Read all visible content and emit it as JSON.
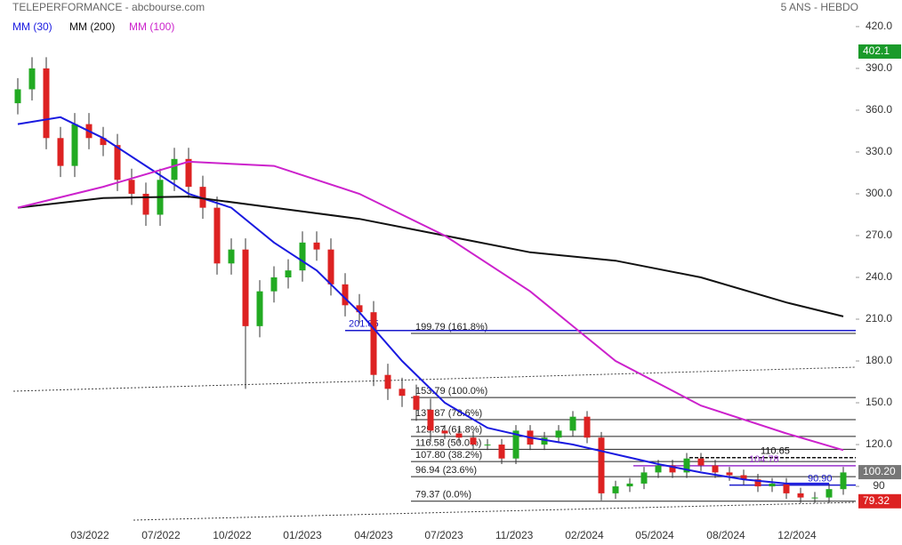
{
  "chart_data": {
    "type": "candlestick",
    "title": "TELEPERFORMANCE - abcbourse.com",
    "subtitle": "5 ANS - HEBDO",
    "x": [
      0,
      1,
      2,
      3,
      4,
      5,
      6,
      7,
      8,
      9,
      10,
      11,
      12,
      13,
      14,
      15,
      16,
      17,
      18,
      19,
      20,
      21,
      22,
      23,
      24,
      25,
      26,
      27,
      28,
      29,
      30,
      31,
      32,
      33,
      34,
      35,
      36,
      37,
      38,
      39,
      40,
      41,
      42,
      43,
      44,
      45,
      46,
      47,
      48,
      49,
      50,
      51,
      52,
      53,
      54,
      55,
      56,
      57,
      58
    ],
    "open": [
      365,
      375,
      390,
      340,
      320,
      350,
      340,
      335,
      310,
      300,
      285,
      310,
      325,
      305,
      290,
      250,
      260,
      205,
      230,
      240,
      245,
      265,
      260,
      235,
      220,
      215,
      170,
      160,
      155,
      145,
      130,
      128,
      125,
      120,
      120,
      110,
      130,
      120,
      125,
      130,
      140,
      125,
      85,
      90,
      92,
      100,
      105,
      100,
      110,
      105,
      100,
      98,
      95,
      90,
      92,
      85,
      82,
      82,
      88
    ],
    "high": [
      383,
      398,
      398,
      348,
      358,
      358,
      348,
      343,
      318,
      308,
      318,
      333,
      333,
      313,
      298,
      268,
      268,
      238,
      248,
      253,
      273,
      273,
      268,
      243,
      228,
      223,
      178,
      168,
      163,
      153,
      134,
      132,
      129,
      124,
      124,
      134,
      134,
      129,
      134,
      144,
      144,
      129,
      94,
      96,
      104,
      109,
      109,
      114,
      114,
      109,
      104,
      102,
      99,
      96,
      96,
      89,
      86,
      92,
      104
    ],
    "low": [
      357,
      367,
      332,
      312,
      312,
      332,
      327,
      302,
      292,
      277,
      277,
      302,
      297,
      282,
      242,
      242,
      160,
      197,
      222,
      232,
      237,
      252,
      227,
      212,
      207,
      162,
      152,
      147,
      137,
      122,
      124,
      121,
      116,
      116,
      106,
      106,
      116,
      116,
      121,
      126,
      121,
      80,
      81,
      86,
      88,
      96,
      96,
      96,
      101,
      96,
      94,
      91,
      86,
      86,
      81,
      78,
      78,
      78,
      84
    ],
    "close": [
      375,
      390,
      340,
      320,
      350,
      340,
      335,
      310,
      300,
      285,
      310,
      325,
      305,
      290,
      250,
      260,
      205,
      230,
      240,
      245,
      265,
      260,
      235,
      220,
      215,
      170,
      160,
      155,
      145,
      130,
      128,
      125,
      120,
      120,
      110,
      130,
      120,
      125,
      130,
      140,
      125,
      85,
      90,
      92,
      100,
      105,
      100,
      110,
      105,
      100,
      98,
      95,
      90,
      92,
      85,
      82,
      82,
      88,
      100
    ],
    "up_color": "#22aa22",
    "down_color": "#dd2222",
    "series": [
      {
        "name": "MM (30)",
        "color": "#1a1ae0",
        "x": [
          0,
          3,
          6,
          9,
          12,
          15,
          18,
          21,
          24,
          27,
          30,
          33,
          36,
          39,
          42,
          45,
          48,
          51,
          54,
          57
        ],
        "values": [
          350,
          355,
          340,
          320,
          300,
          290,
          265,
          245,
          215,
          180,
          150,
          132,
          125,
          120,
          113,
          106,
          100,
          95,
          92,
          92
        ]
      },
      {
        "name": "MM (200)",
        "color": "#111111",
        "x": [
          0,
          6,
          12,
          18,
          24,
          30,
          36,
          42,
          48,
          54,
          58
        ],
        "values": [
          290,
          297,
          298,
          290,
          282,
          270,
          258,
          252,
          240,
          222,
          212
        ]
      },
      {
        "name": "MM (100)",
        "color": "#cc22cc",
        "x": [
          0,
          6,
          12,
          18,
          24,
          30,
          36,
          42,
          48,
          54,
          58
        ],
        "values": [
          290,
          305,
          323,
          320,
          300,
          270,
          230,
          180,
          148,
          128,
          116
        ]
      }
    ],
    "xlim": [
      -1.25,
      58.875
    ],
    "xticks": [
      {
        "value": 5.06,
        "label": "03/2022"
      },
      {
        "value": 10.06,
        "label": "07/2022"
      },
      {
        "value": 15.06,
        "label": "10/2022"
      },
      {
        "value": 20,
        "label": "01/2023"
      },
      {
        "value": 25,
        "label": "04/2023"
      },
      {
        "value": 29.94,
        "label": "07/2023"
      },
      {
        "value": 34.88,
        "label": "11/2023"
      },
      {
        "value": 39.81,
        "label": "02/2024"
      },
      {
        "value": 44.75,
        "label": "05/2024"
      },
      {
        "value": 49.75,
        "label": "08/2024"
      },
      {
        "value": 54.75,
        "label": "12/2024"
      }
    ],
    "ylim": [
      59.4,
      439.1
    ],
    "yticks": [
      {
        "value": 420,
        "label": "420.0"
      },
      {
        "value": 390,
        "label": "390.0"
      },
      {
        "value": 360,
        "label": "360.0"
      },
      {
        "value": 330,
        "label": "330.0"
      },
      {
        "value": 300,
        "label": "300.0"
      },
      {
        "value": 270,
        "label": "270.0"
      },
      {
        "value": 240,
        "label": "240.0"
      },
      {
        "value": 210,
        "label": "210.0"
      },
      {
        "value": 180,
        "label": "180.0"
      },
      {
        "value": 150,
        "label": "150.0"
      },
      {
        "value": 120,
        "label": "120.0"
      },
      90
    ],
    "levels": [
      {
        "value": 199.79,
        "label": "199.79  (161.8%)"
      },
      {
        "value": 153.79,
        "label": "153.79  (100.0%)"
      },
      {
        "value": 137.87,
        "label": "137.87  (78.6%)"
      },
      {
        "value": 125.87,
        "label": "125.87  (61.8%)"
      },
      {
        "value": 116.58,
        "label": "116.58  (50.0%)"
      },
      {
        "value": 107.8,
        "label": "107.80  (38.2%)"
      },
      {
        "value": 96.94,
        "label": "96.94  (23.6%)"
      },
      {
        "value": 79.37,
        "label": "79.37  (0.0%)"
      }
    ],
    "annotations": [
      {
        "value": 201.85,
        "label": "201.85",
        "color": "#1a1acc"
      },
      {
        "value": 110.65,
        "label": "110.65",
        "color": "#111111"
      },
      {
        "value": 104.78,
        "label": "104.78",
        "color": "#9933cc"
      },
      {
        "value": 90.9,
        "label": "90.90",
        "color": "#1a1acc"
      }
    ],
    "price_badges": [
      {
        "value": 402.1,
        "label": "402.1",
        "color": "#1a9a2a"
      },
      {
        "value": 100.2,
        "label": "100.20",
        "color": "#777777"
      },
      {
        "value": 79.32,
        "label": "79.32",
        "color": "#dd2222"
      }
    ]
  }
}
